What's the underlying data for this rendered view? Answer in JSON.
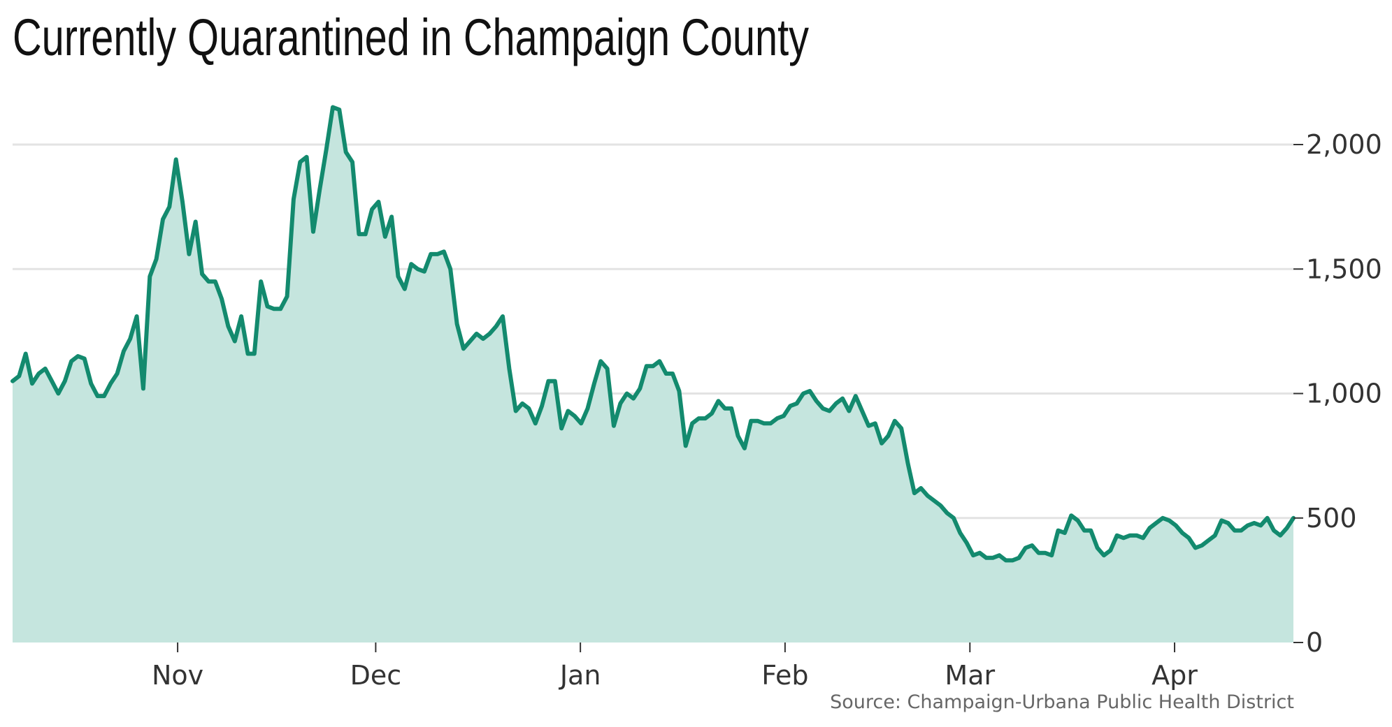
{
  "title": "Currently Quarantined in Champaign County",
  "source": "Source: Champaign-Urbana Public Health District",
  "colors": {
    "line": "#138a6e",
    "area": "#c5e5de",
    "grid": "#e3e3e3"
  },
  "chart_data": {
    "type": "area",
    "title": "Currently Quarantined in Champaign County",
    "xlabel": "",
    "ylabel": "",
    "ylim": [
      0,
      2200
    ],
    "y_ticks": [
      0,
      500,
      1000,
      1500,
      2000
    ],
    "y_tick_labels": [
      "0",
      "500",
      "1,000",
      "1,500",
      "2,000"
    ],
    "x_ticks": [
      "Nov",
      "Dec",
      "Jan",
      "Feb",
      "Mar",
      "Apr"
    ],
    "x_tick_days": [
      25,
      55,
      86,
      117,
      145,
      176
    ],
    "xlim_days": [
      0,
      194
    ],
    "grid": true,
    "series": [
      {
        "name": "",
        "values": [
          1050,
          1070,
          1160,
          1040,
          1080,
          1100,
          1050,
          1000,
          1050,
          1130,
          1150,
          1140,
          1040,
          990,
          990,
          1040,
          1080,
          1170,
          1220,
          1310,
          1020,
          1470,
          1540,
          1700,
          1750,
          1940,
          1770,
          1560,
          1690,
          1480,
          1450,
          1450,
          1380,
          1270,
          1210,
          1310,
          1160,
          1160,
          1450,
          1350,
          1340,
          1340,
          1390,
          1780,
          1930,
          1950,
          1650,
          1820,
          1980,
          2150,
          2140,
          1970,
          1930,
          1640,
          1640,
          1740,
          1770,
          1630,
          1710,
          1470,
          1420,
          1520,
          1500,
          1490,
          1560,
          1560,
          1570,
          1500,
          1280,
          1180,
          1210,
          1240,
          1220,
          1240,
          1270,
          1310,
          1100,
          930,
          960,
          940,
          880,
          950,
          1050,
          1050,
          860,
          930,
          910,
          880,
          940,
          1040,
          1130,
          1100,
          870,
          960,
          1000,
          980,
          1020,
          1110,
          1110,
          1130,
          1080,
          1080,
          1010,
          790,
          880,
          900,
          900,
          920,
          970,
          940,
          940,
          830,
          780,
          890,
          890,
          880,
          880,
          900,
          910,
          950,
          960,
          1000,
          1010,
          970,
          940,
          930,
          960,
          980,
          930,
          990,
          930,
          870,
          880,
          800,
          830,
          890,
          860,
          720,
          600,
          620,
          590,
          570,
          550,
          520,
          500,
          440,
          400,
          350,
          360,
          340,
          340,
          350,
          330,
          330,
          340,
          380,
          390,
          360,
          360,
          350,
          450,
          440,
          510,
          490,
          450,
          450,
          380,
          350,
          370,
          430,
          420,
          430,
          430,
          420,
          460,
          480,
          500,
          490,
          470,
          440,
          420,
          380,
          390,
          410,
          430,
          490,
          480,
          450,
          450,
          470,
          480,
          470,
          500,
          450,
          430,
          460,
          500
        ]
      }
    ]
  }
}
